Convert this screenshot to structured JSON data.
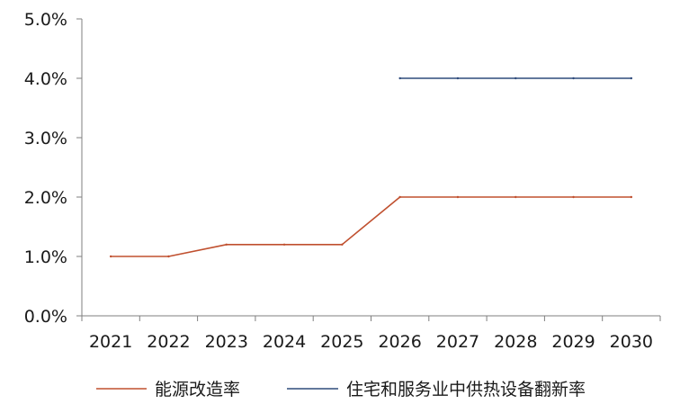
{
  "chart_data": {
    "type": "line",
    "categories": [
      "2021",
      "2022",
      "2023",
      "2024",
      "2025",
      "2026",
      "2027",
      "2028",
      "2029",
      "2030"
    ],
    "ylim": [
      0,
      5
    ],
    "y_ticks": [
      "0.0%",
      "1.0%",
      "2.0%",
      "3.0%",
      "4.0%",
      "5.0%"
    ],
    "y_unit": "%",
    "grid": false,
    "legend_position": "bottom",
    "series": [
      {
        "name": "能源改造率",
        "color": "#c0502f",
        "values": [
          1.0,
          1.0,
          1.2,
          1.2,
          1.2,
          2.0,
          2.0,
          2.0,
          2.0,
          2.0
        ]
      },
      {
        "name": "住宅和服务业中供热设备翻新率",
        "color": "#2f4b7c",
        "values": [
          null,
          null,
          null,
          null,
          null,
          4.0,
          4.0,
          4.0,
          4.0,
          4.0
        ]
      }
    ]
  }
}
